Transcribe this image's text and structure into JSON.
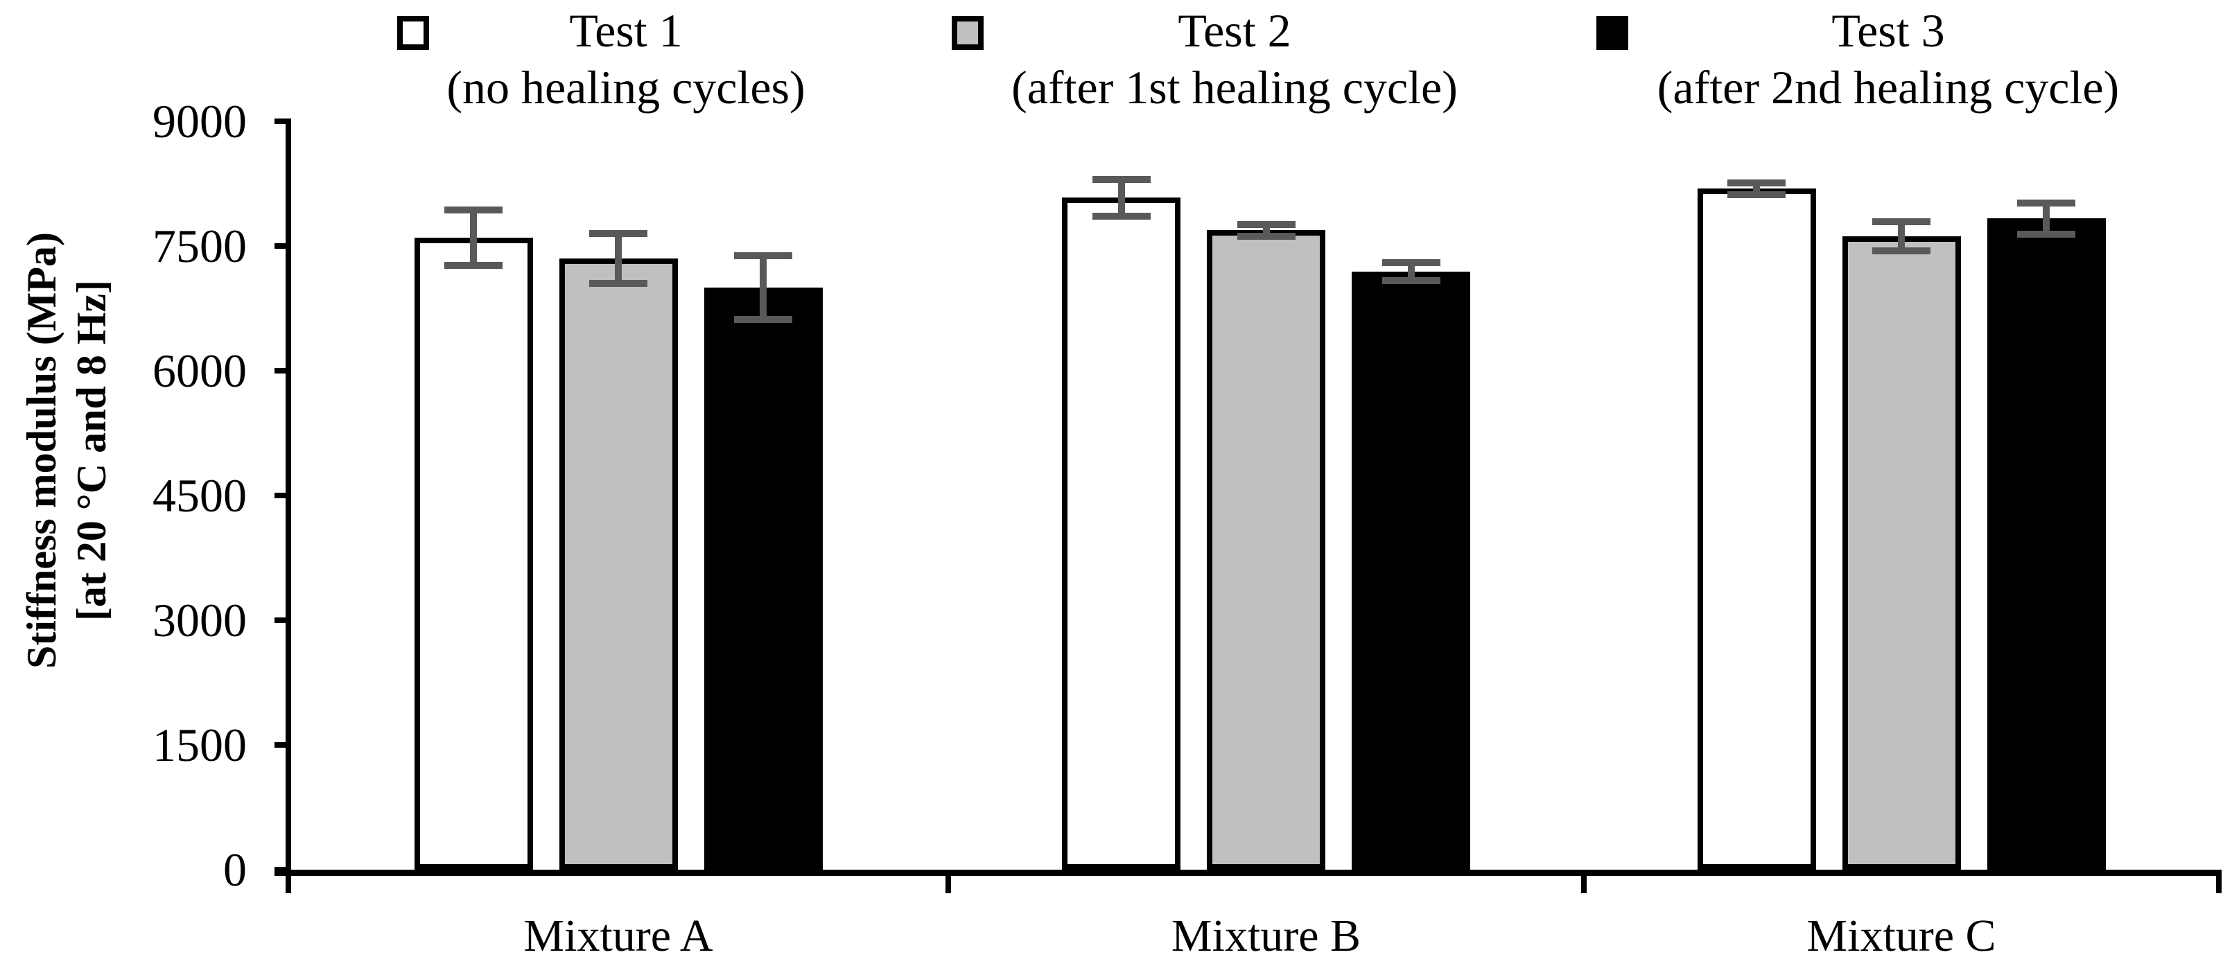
{
  "legend": {
    "entries": [
      {
        "label": "Test 1",
        "sublabel": "(no healing cycles)",
        "swatch_color": "#FFFFFF"
      },
      {
        "label": "Test 2",
        "sublabel": "(after 1st healing cycle)",
        "swatch_color": "#C0C0C0"
      },
      {
        "label": "Test 3",
        "sublabel": "(after 2nd healing cycle)",
        "swatch_color": "#000000"
      }
    ]
  },
  "y_axis": {
    "title_line1": "Stiffness modulus (MPa)",
    "title_line2": "[at 20 °C and 8 Hz]"
  },
  "chart_data": {
    "type": "bar",
    "title": "",
    "categories": [
      "Mixture A",
      "Mixture B",
      "Mixture C"
    ],
    "series": [
      {
        "name": "Test 1 (no healing cycles)",
        "fill": "#FFFFFF",
        "values": [
          7600,
          8080,
          8190
        ],
        "error_bars": [
          335,
          220,
          70
        ]
      },
      {
        "name": "Test 2 (after 1st healing cycle)",
        "fill": "#C0C0C0",
        "values": [
          7350,
          7690,
          7620
        ],
        "error_bars": [
          300,
          70,
          175
        ]
      },
      {
        "name": "Test 3 (after 2nd healing cycle)",
        "fill": "#000000",
        "values": [
          7000,
          7190,
          7830
        ],
        "error_bars": [
          380,
          110,
          190
        ]
      }
    ],
    "xlabel": "",
    "ylabel": "Stiffness modulus (MPa) [at 20 °C and 8 Hz]",
    "ylim": [
      0,
      9000
    ],
    "yticks": [
      0,
      1500,
      3000,
      4500,
      6000,
      7500,
      9000
    ],
    "grid": false,
    "legend_position": "top",
    "bar_border_color": "#000000",
    "error_bar_color": "#595959"
  }
}
